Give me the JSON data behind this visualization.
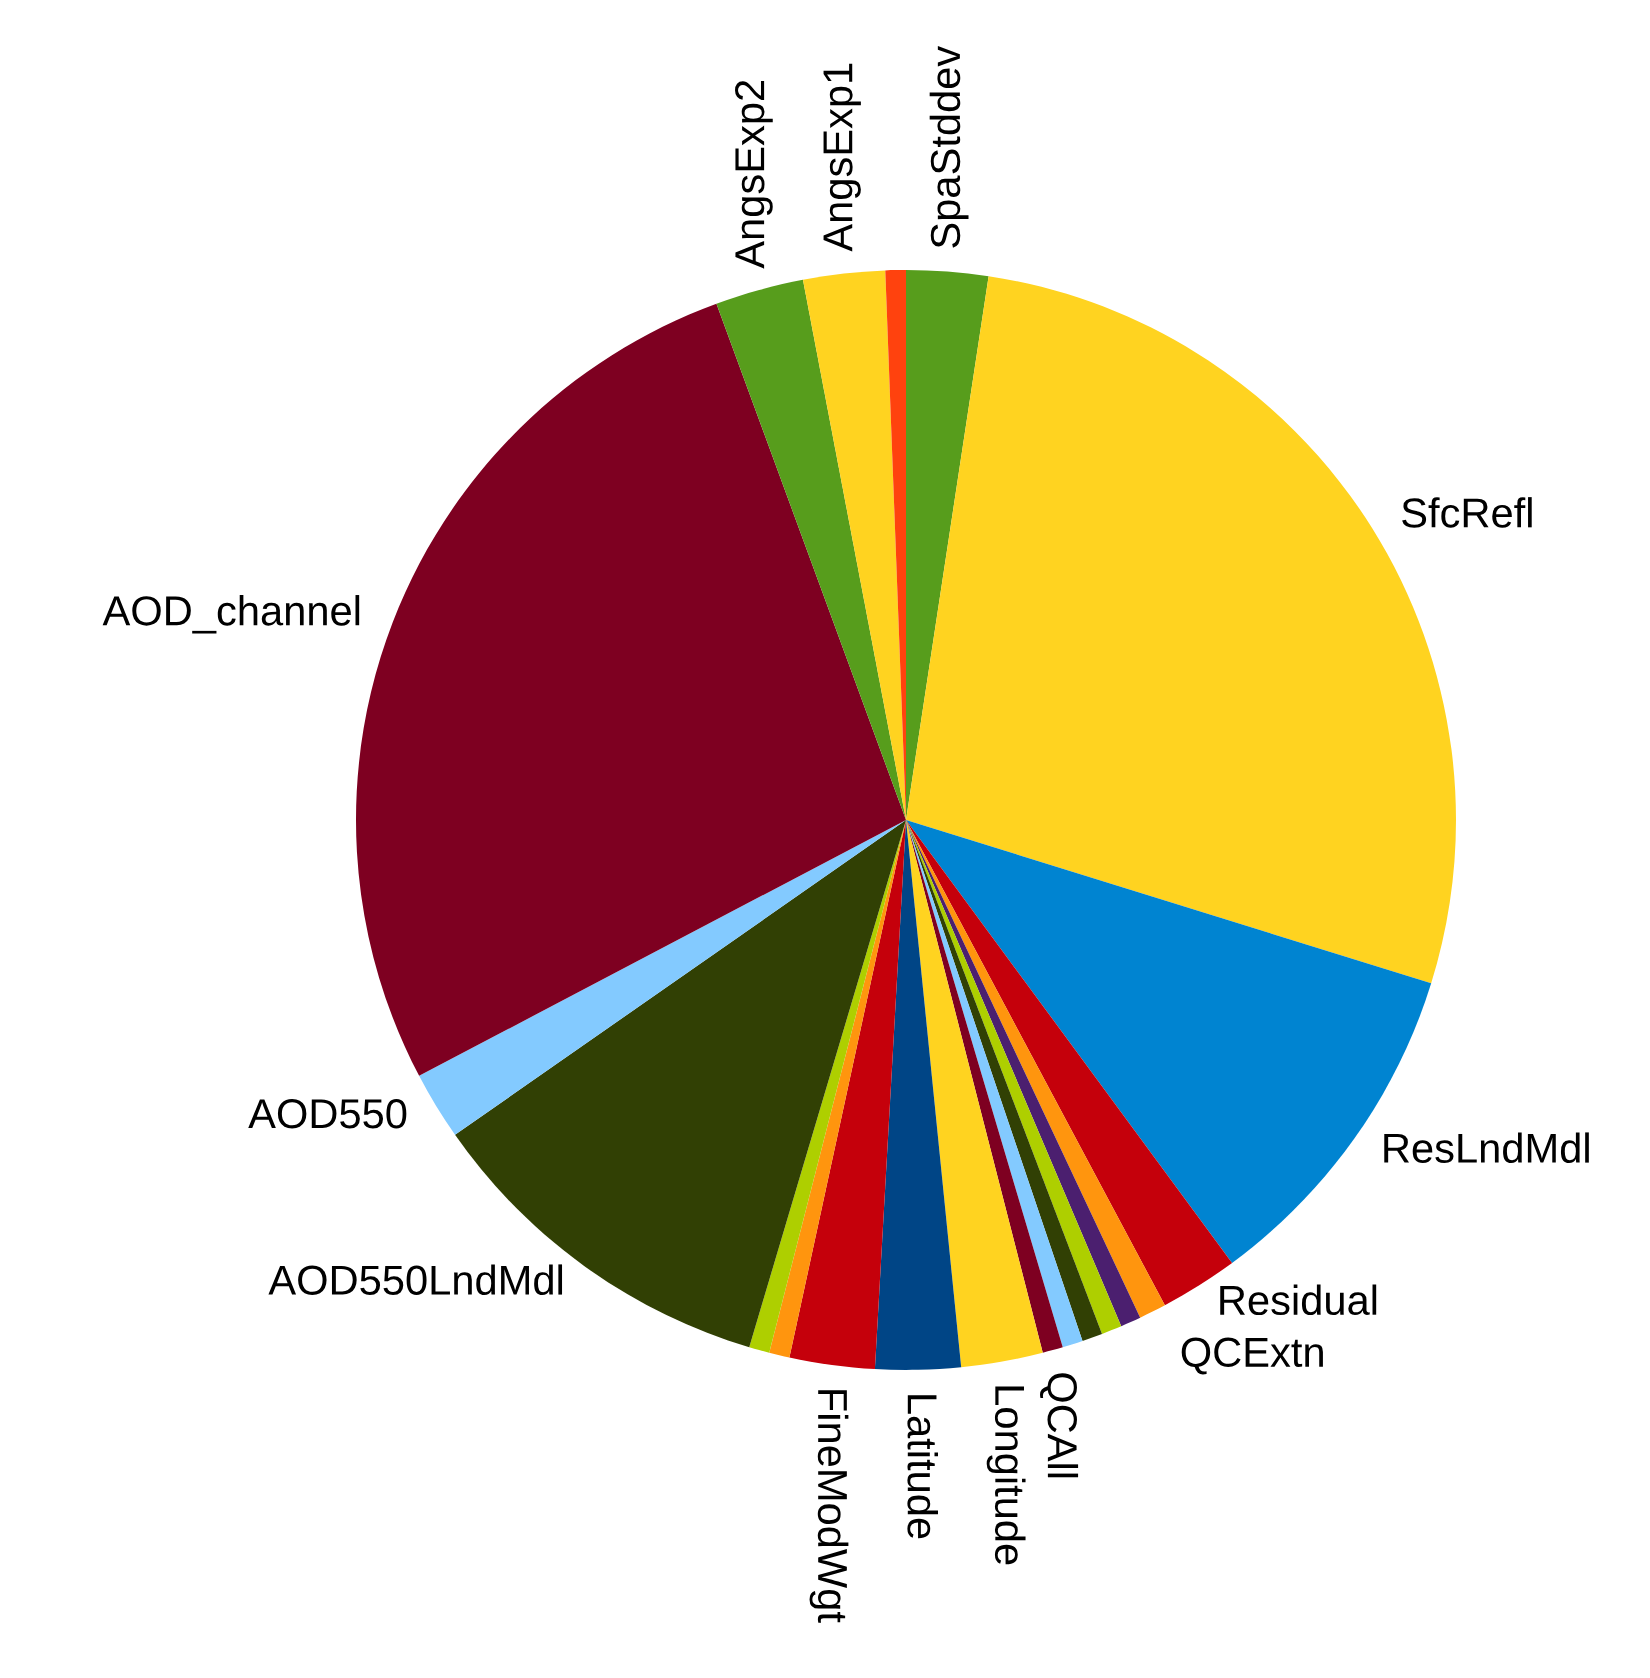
{
  "chart_data": {
    "type": "pie",
    "categories": [
      "SpaStddev",
      "SfcRefl",
      "ResLndMdl",
      "Residual",
      "QCExtn",
      null,
      null,
      null,
      null,
      "QCAll",
      "Longitude",
      "Latitude",
      "FineModWgt",
      null,
      null,
      "AOD550LndMdl",
      "AOD550",
      "AOD_channel",
      "AngsExp2",
      "AngsExp1",
      null
    ],
    "values": [
      2.4,
      27.4,
      10.1,
      2.3,
      0.8,
      0.6,
      0.6,
      0.6,
      0.6,
      0.6,
      2.4,
      2.5,
      2.5,
      0.6,
      0.6,
      10.7,
      2.0,
      27.1,
      2.6,
      2.4,
      0.6
    ],
    "colors": [
      "#579d1c",
      "#ffd320",
      "#0084d1",
      "#c5000b",
      "#ff950e",
      "#4b1f6f",
      "#aecf00",
      "#314004",
      "#83caff",
      "#7e0021",
      "#ffd320",
      "#004586",
      "#c5000b",
      "#ff950e",
      "#aecf00",
      "#314004",
      "#83caff",
      "#7e0021",
      "#579d1c",
      "#ffd320",
      "#ff420e"
    ],
    "legend": false
  }
}
